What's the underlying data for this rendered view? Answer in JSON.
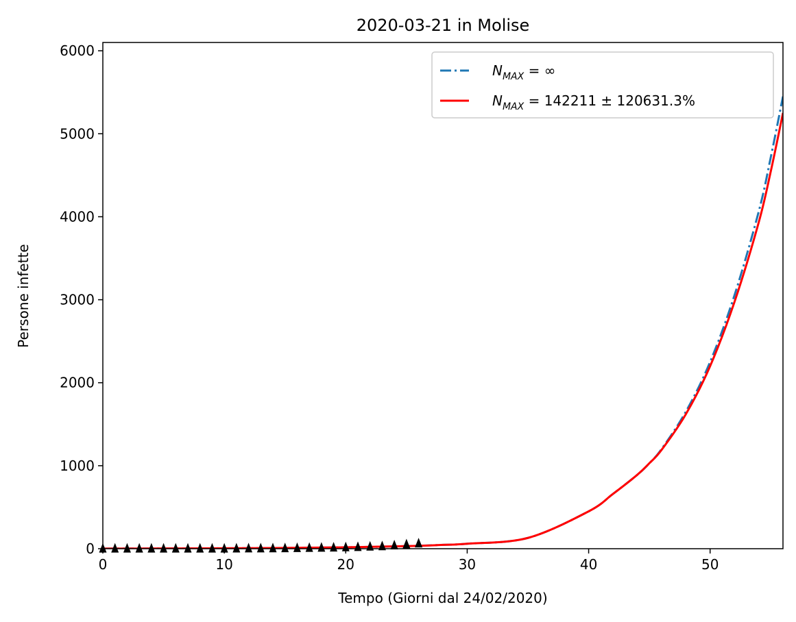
{
  "chart_data": {
    "type": "line",
    "title": "2020-03-21 in Molise",
    "xlabel": "Tempo (Giorni dal 24/02/2020)",
    "ylabel": "Persone infette",
    "xlim": [
      0,
      56
    ],
    "ylim": [
      0,
      6100
    ],
    "xticks": [
      0,
      10,
      20,
      30,
      40,
      50
    ],
    "yticks": [
      0,
      1000,
      2000,
      3000,
      4000,
      5000,
      6000
    ],
    "grid": false,
    "legend_position": "top-right",
    "series": [
      {
        "name": "N_MAX = ∞",
        "style": "dashdot",
        "color": "#1f77b4",
        "x": [
          0,
          5,
          10,
          15,
          20,
          25,
          28,
          30,
          35,
          40,
          42,
          44,
          45,
          46,
          48,
          50,
          52,
          54,
          55,
          56
        ],
        "y": [
          1.5,
          3,
          5,
          9,
          17,
          31,
          46,
          60,
          130,
          450,
          660,
          890,
          1030,
          1200,
          1650,
          2250,
          3050,
          4060,
          4720,
          5450
        ]
      },
      {
        "name": "N_MAX = 142211 ± 120631.3%",
        "style": "solid",
        "color": "#ff0000",
        "x": [
          0,
          5,
          10,
          15,
          20,
          25,
          28,
          30,
          35,
          40,
          42,
          44,
          45,
          46,
          48,
          50,
          52,
          54,
          55,
          56
        ],
        "y": [
          1.5,
          3,
          5,
          9,
          17,
          31,
          46,
          60,
          130,
          450,
          660,
          890,
          1030,
          1190,
          1620,
          2200,
          2970,
          3930,
          4550,
          5250
        ]
      }
    ],
    "observed": {
      "marker": "triangle",
      "color": "#000000",
      "x": [
        0,
        1,
        2,
        3,
        4,
        5,
        6,
        7,
        8,
        9,
        10,
        11,
        12,
        13,
        14,
        15,
        16,
        17,
        18,
        19,
        20,
        21,
        22,
        23,
        24,
        25,
        26
      ],
      "y": [
        0,
        0,
        0,
        0,
        0,
        0,
        0,
        0,
        0,
        0,
        0,
        1,
        2,
        2,
        3,
        4,
        6,
        8,
        10,
        12,
        15,
        18,
        24,
        28,
        38,
        50,
        62
      ]
    }
  }
}
